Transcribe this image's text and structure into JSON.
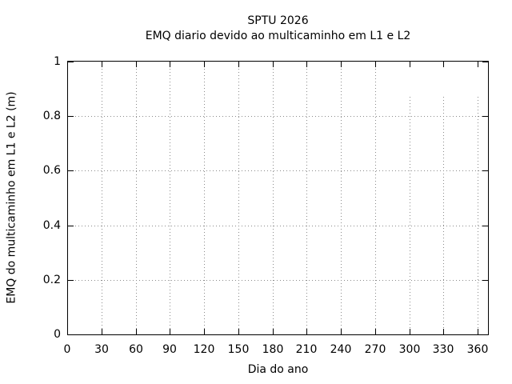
{
  "chart_data": {
    "type": "line",
    "title": "SPTU 2026",
    "subtitle": "EMQ diario devido ao multicaminho em L1 e L2",
    "xlabel": "Dia do ano",
    "ylabel": "EMQ do multicaminho em L1 e L2 (m)",
    "xlim": [
      0,
      369
    ],
    "ylim": [
      0,
      1
    ],
    "xticks": [
      0,
      30,
      60,
      90,
      120,
      150,
      180,
      210,
      240,
      270,
      300,
      330,
      360
    ],
    "xtick_labels": [
      "0",
      "30",
      "60",
      "90",
      "120",
      "150",
      "180",
      "210",
      "240",
      "270",
      "300",
      "330",
      "360"
    ],
    "yticks": [
      0,
      0.2,
      0.4,
      0.6,
      0.8,
      1
    ],
    "ytick_labels": [
      "0",
      "0.2",
      "0.4",
      "0.6",
      "0.8",
      "1"
    ],
    "grid": {
      "visible": true,
      "style": "dotted",
      "color": "#8a8a8a",
      "partial_vgrid": {
        "x": [
          300,
          330,
          360
        ],
        "y_start": 0.87
      }
    },
    "legend": "none",
    "series": [],
    "plot_is_empty": true,
    "border_color": "#000000",
    "background_color": "#ffffff"
  }
}
